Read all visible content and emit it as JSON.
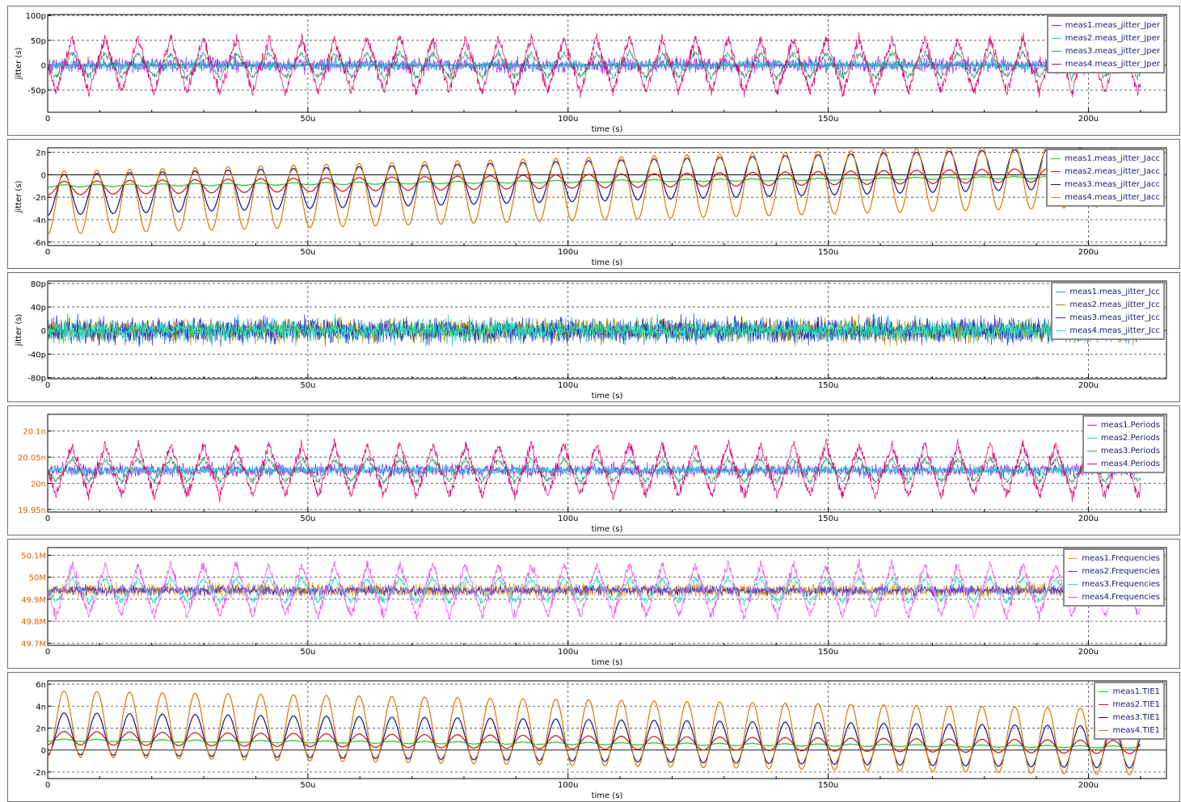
{
  "chart_data": [
    {
      "type": "line",
      "xlabel": "time (s)",
      "ylabel": "jitter (s)",
      "xlim": [
        0,
        215
      ],
      "x_unit": "us",
      "x_ticks": [
        "0",
        "50u",
        "100u",
        "150u",
        "200u"
      ],
      "ylim": [
        -95,
        102
      ],
      "y_unit": "ps",
      "y_ticks": [
        {
          "v": 100,
          "t": "100p"
        },
        {
          "v": 50,
          "t": "50p"
        },
        {
          "v": 0,
          "t": "0"
        },
        {
          "v": -50,
          "t": "-50p"
        }
      ],
      "y_tick_color": "#000000",
      "legend_position": "top-right",
      "series": [
        {
          "name": "meas1.meas_jitter_Jper",
          "color": "#a020f0",
          "shape": "noise",
          "center": 0,
          "amplitude": 0,
          "noise": 22,
          "period_us": 0,
          "drift": 0,
          "x_end": 210
        },
        {
          "name": "meas2.meas_jitter_Jper",
          "color": "#18d0d0",
          "shape": "noise",
          "center": 0,
          "amplitude": 0,
          "noise": 14,
          "period_us": 0,
          "drift": 0,
          "x_end": 210
        },
        {
          "name": "meas3.meas_jitter_Jper",
          "color": "#3a9a70",
          "shape": "triangle",
          "center": 0,
          "amplitude": 25,
          "noise": 10,
          "period_us": 6.3,
          "drift": 0,
          "x_end": 210
        },
        {
          "name": "meas4.meas_jitter_Jper",
          "color": "#e00070",
          "shape": "triangle",
          "center": 0,
          "amplitude": 55,
          "noise": 18,
          "period_us": 6.3,
          "drift": 0,
          "x_end": 210
        }
      ]
    },
    {
      "type": "line",
      "xlabel": "time (s)",
      "ylabel": "jitter (s)",
      "xlim": [
        0,
        215
      ],
      "x_unit": "us",
      "x_ticks": [
        "0",
        "50u",
        "100u",
        "150u",
        "200u"
      ],
      "ylim": [
        -6.3,
        2.4
      ],
      "y_unit": "ns",
      "y_ticks": [
        {
          "v": 2,
          "t": "2n"
        },
        {
          "v": 0,
          "t": "0"
        },
        {
          "v": -2,
          "t": "-2n"
        },
        {
          "v": -4,
          "t": "-4n"
        },
        {
          "v": -6,
          "t": "-6n"
        }
      ],
      "y_tick_color": "#000000",
      "legend_position": "top-right",
      "series": [
        {
          "name": "meas1.meas_jitter_Jacc",
          "color": "#22cc22",
          "shape": "sine",
          "center": -1.0,
          "amplitude": 0.1,
          "noise": 0.05,
          "period_us": 6.3,
          "drift": 0.004,
          "x_end": 210
        },
        {
          "name": "meas2.meas_jitter_Jacc",
          "color": "#d01010",
          "shape": "sine",
          "center": -1.2,
          "amplitude": 0.6,
          "noise": 0.03,
          "period_us": 6.3,
          "drift": 0.006,
          "x_end": 210
        },
        {
          "name": "meas3.meas_jitter_Jacc",
          "color": "#101090",
          "shape": "sine",
          "center": -1.8,
          "amplitude": 1.8,
          "noise": 0.03,
          "period_us": 6.3,
          "drift": 0.012,
          "x_end": 210
        },
        {
          "name": "meas4.meas_jitter_Jacc",
          "color": "#dd7700",
          "shape": "sine",
          "center": -2.5,
          "amplitude": 2.8,
          "noise": 0.03,
          "period_us": 6.3,
          "drift": 0.012,
          "x_end": 210
        }
      ]
    },
    {
      "type": "line",
      "xlabel": "time (s)",
      "ylabel": "jitter (s)",
      "xlim": [
        0,
        215
      ],
      "x_unit": "us",
      "x_ticks": [
        "0",
        "50u",
        "100u",
        "150u",
        "200u"
      ],
      "ylim": [
        -82,
        84
      ],
      "y_unit": "ps",
      "y_ticks": [
        {
          "v": 80,
          "t": "80p"
        },
        {
          "v": 40,
          "t": "40p"
        },
        {
          "v": 0,
          "t": "0"
        },
        {
          "v": -40,
          "t": "-40p"
        },
        {
          "v": -80,
          "t": "-80p"
        }
      ],
      "y_tick_color": "#000000",
      "legend_position": "top-right",
      "series": [
        {
          "name": "meas1.meas_jitter_Jcc",
          "color": "#2aa0d0",
          "shape": "noise",
          "center": 0,
          "amplitude": 0,
          "noise": 30,
          "period_us": 0,
          "drift": 0,
          "x_end": 210
        },
        {
          "name": "meas2.meas_jitter_Jcc",
          "color": "#a09000",
          "shape": "noise",
          "center": 0,
          "amplitude": 0,
          "noise": 30,
          "period_us": 0,
          "drift": 0,
          "x_end": 210
        },
        {
          "name": "meas3.meas_jitter_Jcc",
          "color": "#3030d0",
          "shape": "noise",
          "center": 0,
          "amplitude": 0,
          "noise": 32,
          "period_us": 0,
          "drift": 0,
          "x_end": 210
        },
        {
          "name": "meas4.meas_jitter_Jcc",
          "color": "#22eeb0",
          "shape": "noise",
          "center": 0,
          "amplitude": 0,
          "noise": 22,
          "period_us": 0,
          "drift": 0,
          "x_end": 210
        }
      ]
    },
    {
      "type": "line",
      "xlabel": "time (s)",
      "ylabel": "",
      "xlim": [
        0,
        215
      ],
      "x_unit": "us",
      "x_ticks": [
        "0",
        "50u",
        "100u",
        "150u",
        "200u"
      ],
      "ylim": [
        19.945,
        20.132
      ],
      "y_unit": "ns",
      "y_ticks": [
        {
          "v": 20.1,
          "t": "20.1n"
        },
        {
          "v": 20.05,
          "t": "20.05n"
        },
        {
          "v": 20.0,
          "t": "20n"
        },
        {
          "v": 19.95,
          "t": "19.95n"
        }
      ],
      "y_tick_color": "#e06000",
      "legend_position": "top-right",
      "series": [
        {
          "name": "meas1.Periods",
          "color": "#a020f0",
          "shape": "noise",
          "center": 20.025,
          "amplitude": 0,
          "noise": 0.018,
          "period_us": 0,
          "drift": 0,
          "x_end": 210
        },
        {
          "name": "meas2.Periods",
          "color": "#18d0d0",
          "shape": "noise",
          "center": 20.025,
          "amplitude": 0,
          "noise": 0.012,
          "period_us": 0,
          "drift": 0,
          "x_end": 210
        },
        {
          "name": "meas3.Periods",
          "color": "#3a9a70",
          "shape": "triangle",
          "center": 20.025,
          "amplitude": 0.022,
          "noise": 0.008,
          "period_us": 6.3,
          "drift": 0,
          "x_end": 210
        },
        {
          "name": "meas4.Periods",
          "color": "#e00070",
          "shape": "triangle",
          "center": 20.025,
          "amplitude": 0.05,
          "noise": 0.016,
          "period_us": 6.3,
          "drift": 0,
          "x_end": 210
        }
      ]
    },
    {
      "type": "line",
      "xlabel": "time (s)",
      "ylabel": "",
      "xlim": [
        0,
        215
      ],
      "x_unit": "us",
      "x_ticks": [
        "0",
        "50u",
        "100u",
        "150u",
        "200u"
      ],
      "ylim": [
        49.69,
        50.135
      ],
      "y_unit": "MHz",
      "y_ticks": [
        {
          "v": 50.1,
          "t": "50.1M"
        },
        {
          "v": 50.0,
          "t": "50M"
        },
        {
          "v": 49.9,
          "t": "49.9M"
        },
        {
          "v": 49.8,
          "t": "49.8M"
        },
        {
          "v": 49.7,
          "t": "49.7M"
        }
      ],
      "y_tick_color": "#e06000",
      "legend_position": "top-right",
      "series": [
        {
          "name": "meas1.Frequencies",
          "color": "#e0a000",
          "shape": "noise",
          "center": 49.94,
          "amplitude": 0,
          "noise": 0.045,
          "period_us": 0,
          "drift": 0,
          "x_end": 210
        },
        {
          "name": "meas2.Frequencies",
          "color": "#5030e0",
          "shape": "noise",
          "center": 49.94,
          "amplitude": 0,
          "noise": 0.035,
          "period_us": 0,
          "drift": 0,
          "x_end": 210
        },
        {
          "name": "meas3.Frequencies",
          "color": "#22ddc0",
          "shape": "triangle",
          "center": 49.94,
          "amplitude": 0.055,
          "noise": 0.02,
          "period_us": 6.3,
          "drift": 0,
          "x_end": 210
        },
        {
          "name": "meas4.Frequencies",
          "color": "#f050f0",
          "shape": "triangle",
          "center": 49.94,
          "amplitude": 0.12,
          "noise": 0.035,
          "period_us": 6.3,
          "drift": 0,
          "x_end": 210
        }
      ]
    },
    {
      "type": "line",
      "xlabel": "time (s)",
      "ylabel": "",
      "xlim": [
        0,
        215
      ],
      "x_unit": "us",
      "x_ticks": [
        "0",
        "50u",
        "100u",
        "150u",
        "200u"
      ],
      "ylim": [
        -2.6,
        6.3
      ],
      "y_unit": "ns",
      "y_ticks": [
        {
          "v": 6,
          "t": "6n"
        },
        {
          "v": 4,
          "t": "4n"
        },
        {
          "v": 2,
          "t": "2n"
        },
        {
          "v": 0,
          "t": "0"
        },
        {
          "v": -2,
          "t": "-2n"
        }
      ],
      "y_tick_color": "#000000",
      "legend_position": "top-right",
      "series": [
        {
          "name": "meas1.TIE1",
          "color": "#22cc22",
          "shape": "sine",
          "center": 0.9,
          "amplitude": 0.1,
          "noise": 0.05,
          "period_us": 6.3,
          "drift": -0.003,
          "x_end": 210
        },
        {
          "name": "meas2.TIE1",
          "color": "#d01010",
          "shape": "sine",
          "center": 1.1,
          "amplitude": 0.6,
          "noise": 0.03,
          "period_us": 6.3,
          "drift": -0.004,
          "x_end": 210
        },
        {
          "name": "meas3.TIE1",
          "color": "#101090",
          "shape": "sine",
          "center": 1.5,
          "amplitude": 1.9,
          "noise": 0.03,
          "period_us": 6.3,
          "drift": -0.006,
          "x_end": 210
        },
        {
          "name": "meas4.TIE1",
          "color": "#dd7700",
          "shape": "sine",
          "center": 2.4,
          "amplitude": 3.0,
          "noise": 0.03,
          "period_us": 6.3,
          "drift": -0.008,
          "x_end": 210
        }
      ]
    }
  ]
}
